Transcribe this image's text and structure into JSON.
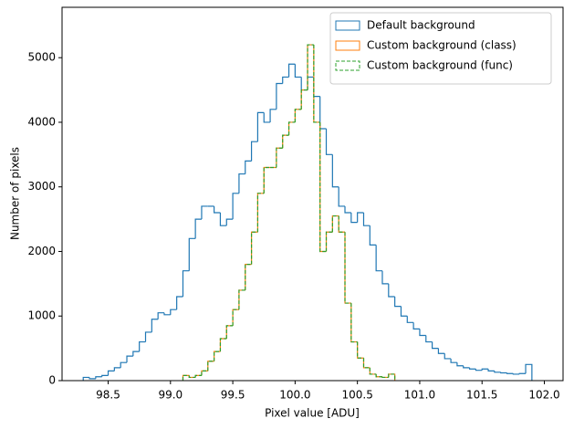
{
  "chart_data": {
    "type": "histogram",
    "xlabel": "Pixel value [ADU]",
    "ylabel": "Number of pixels",
    "xlim": [
      98.13,
      102.15
    ],
    "ylim": [
      0,
      5780
    ],
    "xticks": [
      98.5,
      {
        "value": 99,
        "label": "99.0"
      },
      99.5,
      {
        "value": 100,
        "label": "100.0"
      },
      100.5,
      {
        "value": 101,
        "label": "101.0"
      },
      101.5,
      {
        "value": 102,
        "label": "102.0"
      }
    ],
    "yticks": [
      0,
      1000,
      2000,
      3000,
      4000,
      5000
    ],
    "legend": "upper right",
    "series": [
      {
        "name": "Default background",
        "color": "#1f77b4",
        "linestyle": "solid",
        "bins": [
          98.3,
          98.35,
          98.4,
          98.45,
          98.5,
          98.55,
          98.6,
          98.65,
          98.7,
          98.75,
          98.8,
          98.85,
          98.9,
          98.95,
          99,
          99.05,
          99.1,
          99.15,
          99.2,
          99.25,
          99.3,
          99.35,
          99.4,
          99.45,
          99.5,
          99.55,
          99.6,
          99.65,
          99.7,
          99.75,
          99.8,
          99.85,
          99.9,
          99.95,
          100,
          100.05,
          100.1,
          100.15,
          100.2,
          100.25,
          100.3,
          100.35,
          100.4,
          100.45,
          100.5,
          100.55,
          100.6,
          100.65,
          100.7,
          100.75,
          100.8,
          100.85,
          100.9,
          100.95,
          101,
          101.05,
          101.1,
          101.15,
          101.2,
          101.25,
          101.3,
          101.35,
          101.4,
          101.45,
          101.5,
          101.55,
          101.6,
          101.65,
          101.7,
          101.75,
          101.8,
          101.85,
          101.9
        ],
        "values": [
          50,
          30,
          60,
          80,
          150,
          200,
          280,
          380,
          450,
          600,
          750,
          950,
          1050,
          1020,
          1100,
          1300,
          1700,
          2200,
          2500,
          2700,
          2700,
          2600,
          2400,
          2500,
          2900,
          3200,
          3400,
          3700,
          4150,
          4000,
          4200,
          4600,
          4700,
          4900,
          4700,
          4500,
          4700,
          4400,
          3900,
          3500,
          3000,
          2700,
          2600,
          2450,
          2600,
          2400,
          2100,
          1700,
          1500,
          1300,
          1150,
          1000,
          900,
          800,
          700,
          600,
          500,
          420,
          340,
          280,
          230,
          200,
          180,
          160,
          180,
          150,
          130,
          120,
          110,
          100,
          110,
          250
        ]
      },
      {
        "name": "Custom background (class)",
        "color": "#ff7f0e",
        "linestyle": "solid",
        "bins": [
          99.1,
          99.15,
          99.2,
          99.25,
          99.3,
          99.35,
          99.4,
          99.45,
          99.5,
          99.55,
          99.6,
          99.65,
          99.7,
          99.75,
          99.8,
          99.85,
          99.9,
          99.95,
          100,
          100.05,
          100.1,
          100.15,
          100.2,
          100.25,
          100.3,
          100.35,
          100.4,
          100.45,
          100.5,
          100.55,
          100.6,
          100.65,
          100.7,
          100.75,
          100.8
        ],
        "values": [
          80,
          50,
          80,
          150,
          300,
          450,
          650,
          850,
          1100,
          1400,
          1800,
          2300,
          2900,
          3300,
          3300,
          3600,
          3800,
          4000,
          4200,
          4500,
          5200,
          4000,
          2000,
          2300,
          2550,
          2300,
          1200,
          600,
          350,
          200,
          100,
          60,
          50,
          100
        ]
      },
      {
        "name": "Custom background (func)",
        "color": "#2ca02c",
        "linestyle": "dashed",
        "bins": [
          99.1,
          99.15,
          99.2,
          99.25,
          99.3,
          99.35,
          99.4,
          99.45,
          99.5,
          99.55,
          99.6,
          99.65,
          99.7,
          99.75,
          99.8,
          99.85,
          99.9,
          99.95,
          100,
          100.05,
          100.1,
          100.15,
          100.2,
          100.25,
          100.3,
          100.35,
          100.4,
          100.45,
          100.5,
          100.55,
          100.6,
          100.65,
          100.7,
          100.75,
          100.8
        ],
        "values": [
          80,
          50,
          80,
          150,
          300,
          450,
          650,
          850,
          1100,
          1400,
          1800,
          2300,
          2900,
          3300,
          3300,
          3600,
          3800,
          4000,
          4200,
          4500,
          5200,
          4000,
          2000,
          2300,
          2550,
          2300,
          1200,
          600,
          350,
          200,
          100,
          60,
          50,
          100
        ]
      }
    ]
  }
}
